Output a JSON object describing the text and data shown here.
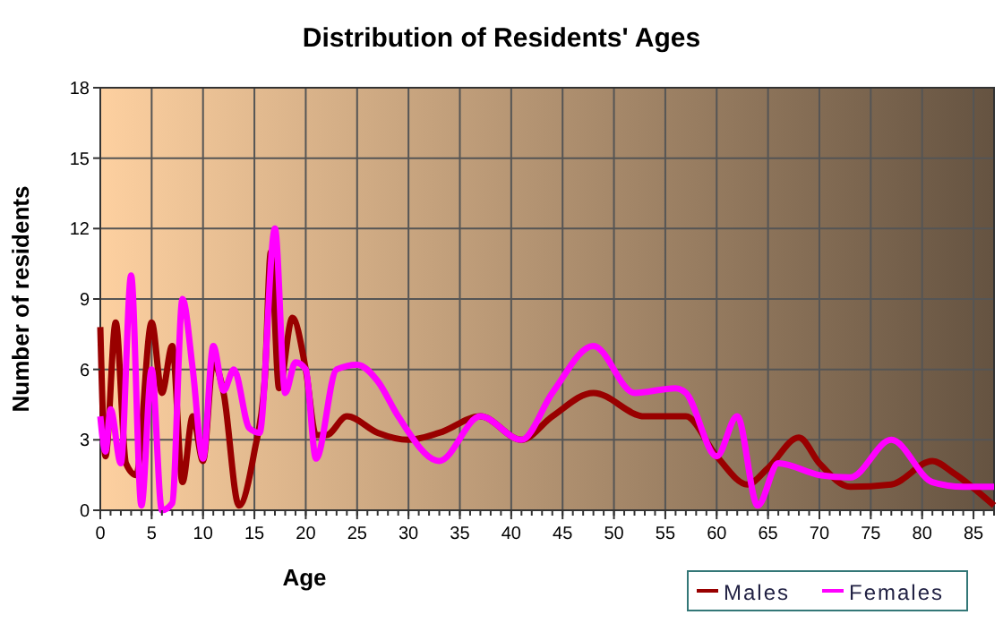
{
  "chart_data": {
    "type": "line",
    "title": "Distribution of Residents' Ages",
    "xlabel": "Age",
    "ylabel": "Number of residents",
    "xlim": [
      0,
      87
    ],
    "xticks": [
      0,
      5,
      10,
      15,
      20,
      25,
      30,
      35,
      40,
      45,
      50,
      55,
      60,
      65,
      70,
      75,
      80,
      85
    ],
    "ylim": [
      0,
      18
    ],
    "yticks": [
      0,
      3,
      6,
      9,
      12,
      15,
      18
    ],
    "grid": true,
    "legend": "bottom right",
    "marker": "none",
    "line_style": "solid",
    "series": [
      {
        "name": "Males",
        "color": "#990000",
        "x": [
          0,
          0.5,
          1.5,
          2.5,
          3.5,
          5,
          6,
          7,
          8,
          9,
          10,
          11,
          12,
          13.5,
          15,
          16,
          16.6,
          17.4,
          18.7,
          20,
          21,
          22,
          24,
          27,
          30,
          33,
          37,
          41,
          44,
          48,
          53,
          57,
          60,
          63,
          65,
          68,
          70,
          73,
          77,
          81,
          83,
          87
        ],
        "values": [
          7.8,
          2.3,
          8,
          2,
          1.5,
          8,
          5,
          7,
          1.2,
          4,
          2.1,
          6.3,
          5,
          0.2,
          2.5,
          5.5,
          11,
          5.2,
          8.2,
          6,
          3.2,
          3.2,
          4,
          3.3,
          3,
          3.3,
          4,
          3,
          4,
          5,
          4,
          4,
          2.3,
          1.1,
          1.8,
          3.1,
          2,
          1,
          1.1,
          2.1,
          1.6,
          0.2
        ]
      },
      {
        "name": "Females",
        "color": "#ff00ff",
        "x": [
          0,
          0.5,
          1,
          2,
          3,
          4,
          5,
          6,
          7,
          8,
          9,
          10,
          11,
          12,
          13,
          14.5,
          15.5,
          17,
          18,
          19,
          20,
          21,
          23,
          25,
          27,
          29,
          33,
          37,
          41,
          44,
          48,
          52,
          56,
          57,
          60,
          62,
          64,
          66,
          70,
          73,
          77,
          81,
          84,
          87
        ],
        "values": [
          4,
          2.5,
          4.3,
          2,
          10,
          0.2,
          6,
          0,
          0.3,
          9,
          6,
          2.2,
          7,
          5.1,
          6,
          3.5,
          3.3,
          12,
          5,
          6.3,
          6,
          2.2,
          6,
          6.2,
          5.5,
          4,
          2.1,
          4,
          3,
          5,
          7,
          5,
          5.2,
          5,
          2.3,
          4,
          0.2,
          2,
          1.5,
          1.4,
          3,
          1.2,
          1,
          1
        ]
      }
    ]
  }
}
